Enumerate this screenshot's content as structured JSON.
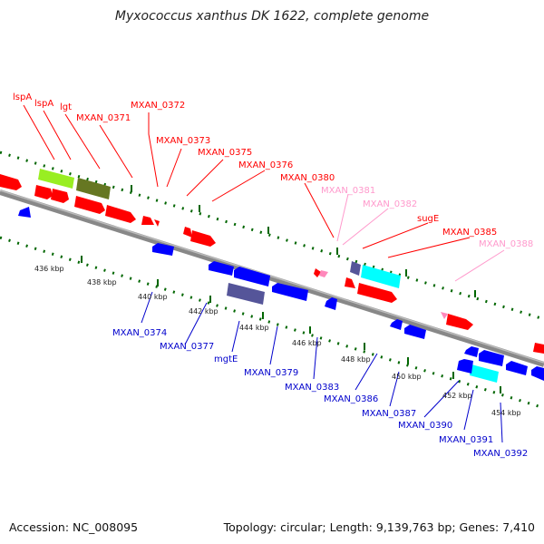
{
  "title": "Myxococcus xanthus DK 1622, complete genome",
  "accession_text": "Accession: NC_008095",
  "summary_text": "Topology: circular; Length: 9,139,763 bp; Genes: 7,410",
  "colors": {
    "forward_gene": "#ff0000",
    "forward_pseudo": "#ff88bb",
    "reverse_gene": "#0000ff",
    "rrna_like": "#00ffff",
    "operon_dark": "#555599",
    "operon_green": "#667722",
    "operon_lime": "#99ee22",
    "backbone": "#888888",
    "tick": "#006600",
    "label_forward": "#ff0000",
    "label_forward_faint": "#ff99cc",
    "label_reverse": "#0000cc"
  },
  "ticks": [
    "436 kbp",
    "438 kbp",
    "440 kbp",
    "442 kbp",
    "444 kbp",
    "446 kbp",
    "448 kbp",
    "450 kbp",
    "452 kbp",
    "454 kbp"
  ],
  "forward_labels": [
    "lspA",
    "lspA",
    "lgt",
    "MXAN_0371",
    "MXAN_0372",
    "MXAN_0373",
    "MXAN_0375",
    "MXAN_0376",
    "MXAN_0380",
    "MXAN_0381",
    "MXAN_0382",
    "sugE",
    "MXAN_0385",
    "MXAN_0388"
  ],
  "reverse_labels": [
    "MXAN_0374",
    "MXAN_0377",
    "mgtE",
    "MXAN_0379",
    "MXAN_0383",
    "MXAN_0386",
    "MXAN_0387",
    "MXAN_0390",
    "MXAN_0391",
    "MXAN_0392"
  ]
}
